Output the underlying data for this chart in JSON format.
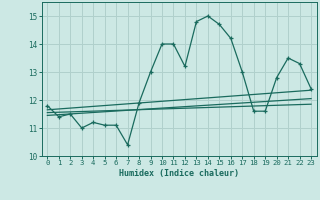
{
  "xlabel": "Humidex (Indice chaleur)",
  "background_color": "#cce8e4",
  "grid_color": "#b0d0cc",
  "line_color": "#1a6b5e",
  "xlim": [
    -0.5,
    23.5
  ],
  "ylim": [
    10,
    15.5
  ],
  "yticks": [
    10,
    11,
    12,
    13,
    14,
    15
  ],
  "xticks": [
    0,
    1,
    2,
    3,
    4,
    5,
    6,
    7,
    8,
    9,
    10,
    11,
    12,
    13,
    14,
    15,
    16,
    17,
    18,
    19,
    20,
    21,
    22,
    23
  ],
  "main_line_x": [
    0,
    1,
    2,
    3,
    4,
    5,
    6,
    7,
    8,
    9,
    10,
    11,
    12,
    13,
    14,
    15,
    16,
    17,
    18,
    19,
    20,
    21,
    22,
    23
  ],
  "main_line_y": [
    11.8,
    11.4,
    11.5,
    11.0,
    11.2,
    11.1,
    11.1,
    10.4,
    11.9,
    13.0,
    14.0,
    14.0,
    13.2,
    14.8,
    15.0,
    14.7,
    14.2,
    13.0,
    11.6,
    11.6,
    12.8,
    13.5,
    13.3,
    12.4
  ],
  "trend_line1_x": [
    0,
    23
  ],
  "trend_line1_y": [
    11.65,
    12.35
  ],
  "trend_line2_x": [
    0,
    23
  ],
  "trend_line2_y": [
    11.45,
    12.05
  ],
  "trend_line3_x": [
    0,
    23
  ],
  "trend_line3_y": [
    11.55,
    11.85
  ]
}
